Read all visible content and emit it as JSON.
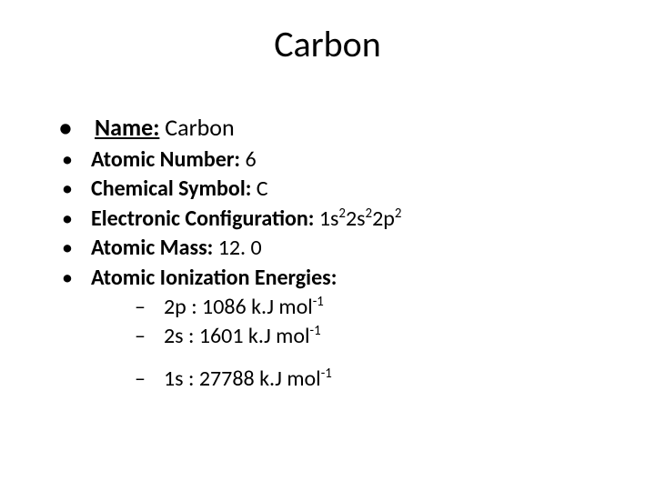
{
  "title": "Carbon",
  "items": {
    "name": {
      "label": "Name:",
      "value": " Carbon"
    },
    "atomic_number": {
      "label": "Atomic Number:",
      "value": " 6"
    },
    "symbol": {
      "label": "Chemical Symbol:",
      "value": " C"
    },
    "config": {
      "label": "Electronic Configuration:",
      "prefix": " 1s",
      "s1_exp": "2",
      "mid1": "2s",
      "s2_exp": "2",
      "mid2": "2p",
      "p_exp": "2"
    },
    "mass": {
      "label": "Atomic Mass:",
      "value": " 12. 0"
    },
    "ionization": {
      "label": "Atomic Ionization Energies:"
    }
  },
  "energies_a": [
    {
      "orbital": "2p : ",
      "value": "1086 k.J mol",
      "exp": "-1"
    },
    {
      "orbital": "2s : ",
      "value": "1601 k.J mol",
      "exp": "-1"
    }
  ],
  "energies_b": [
    {
      "orbital": "1s : ",
      "value": "27788 k.J mol",
      "exp": "-1"
    }
  ],
  "colors": {
    "bg": "#ffffff",
    "text": "#000000"
  },
  "typography": {
    "title_size": 40,
    "body_size": 24,
    "first_item_size": 26
  }
}
